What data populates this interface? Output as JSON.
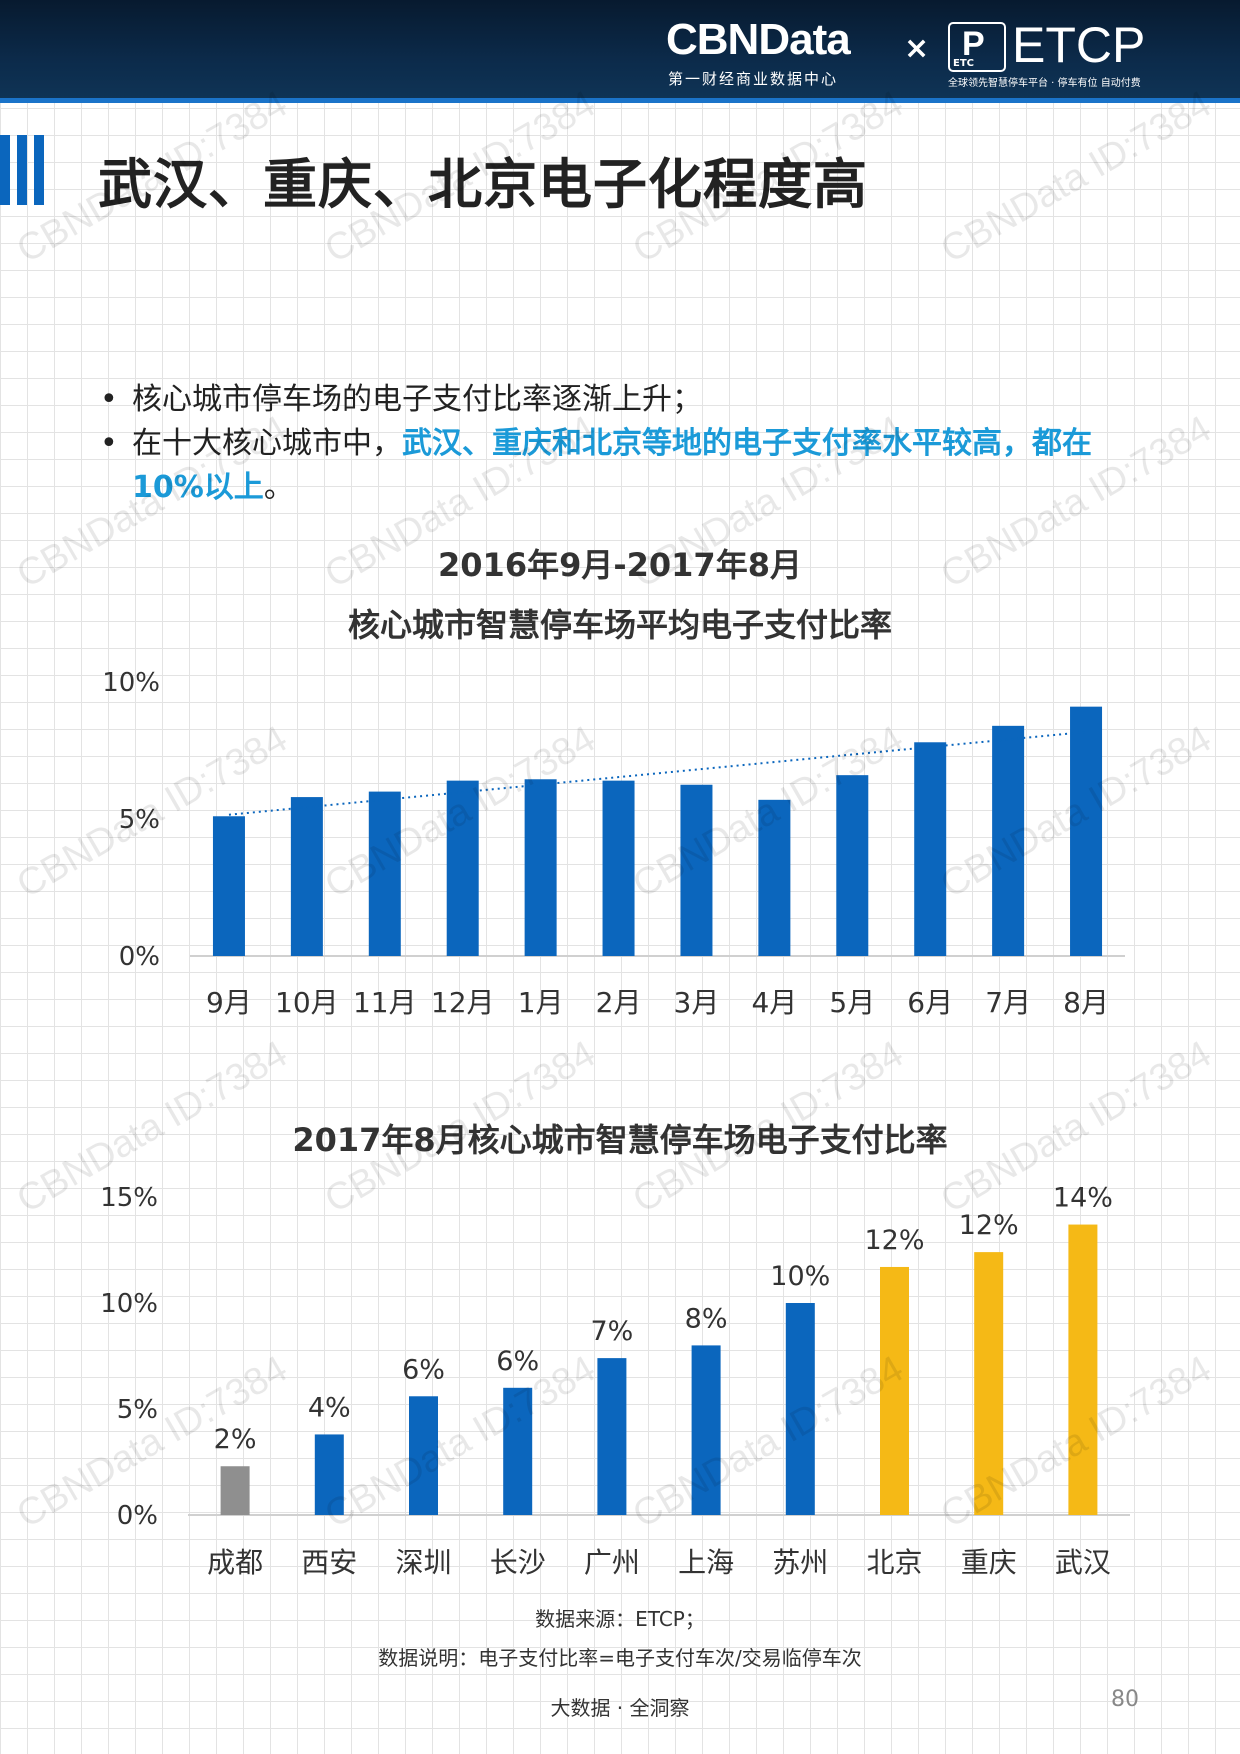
{
  "header": {
    "brand": "CBNData",
    "brand_sub": "第一财经商业数据中心",
    "cross": "×",
    "partner_mark": "P",
    "partner_mark_small": "ETC",
    "partner": "ETCP",
    "partner_sub": "全球领先智慧停车平台 · 停车有位 自动付费"
  },
  "page_title": "武汉、重庆、北京电子化程度高",
  "bullets": {
    "b1": "核心城市停车场的电子支付比率逐渐上升；",
    "b2_plain": "在十大核心城市中，",
    "b2_hl": "武汉、重庆和北京等地的电子支付率水平较高，都在10%以上",
    "b2_end": "。"
  },
  "chart1_title_line1": "2016年9月-2017年8月",
  "chart1_title_line2": "核心城市智慧停车场平均电子支付比率",
  "chart2_title": "2017年8月核心城市智慧停车场电子支付比率",
  "chart_data": [
    {
      "type": "bar",
      "title": "2016年9月-2017年8月 核心城市智慧停车场平均电子支付比率",
      "categories": [
        "9月",
        "10月",
        "11月",
        "12月",
        "1月",
        "2月",
        "3月",
        "4月",
        "5月",
        "6月",
        "7月",
        "8月"
      ],
      "values": [
        5.1,
        5.8,
        6.0,
        6.4,
        6.45,
        6.4,
        6.25,
        5.7,
        6.6,
        7.8,
        8.4,
        9.1
      ],
      "y_tick_labels": [
        "0%",
        "5%",
        "10%"
      ],
      "y_ticks": [
        0,
        5,
        10
      ],
      "ylim": [
        0,
        10
      ],
      "trendline": "linear",
      "color": "#0b66bd",
      "grid": false
    },
    {
      "type": "bar",
      "title": "2017年8月核心城市智慧停车场电子支付比率",
      "categories": [
        "成都",
        "西安",
        "深圳",
        "长沙",
        "广州",
        "上海",
        "苏州",
        "北京",
        "重庆",
        "武汉"
      ],
      "values": [
        2.3,
        3.8,
        5.6,
        6.0,
        7.4,
        8.0,
        10.0,
        11.7,
        12.4,
        13.7
      ],
      "data_labels": [
        "2%",
        "4%",
        "6%",
        "6%",
        "7%",
        "8%",
        "10%",
        "12%",
        "12%",
        "14%"
      ],
      "colors": [
        "#8f8f8f",
        "#0b66bd",
        "#0b66bd",
        "#0b66bd",
        "#0b66bd",
        "#0b66bd",
        "#0b66bd",
        "#f5b916",
        "#f5b916",
        "#f5b916"
      ],
      "y_tick_labels": [
        "0%",
        "5%",
        "10%",
        "15%"
      ],
      "y_ticks": [
        0,
        5,
        10,
        15
      ],
      "ylim": [
        0,
        15
      ],
      "grid": false
    }
  ],
  "footer": {
    "source": "数据来源：ETCP；",
    "note": "数据说明：电子支付比率=电子支付车次/交易临停车次",
    "slogan": "大数据 · 全洞察",
    "page": "80"
  },
  "watermark": "CBNData ID:7384"
}
